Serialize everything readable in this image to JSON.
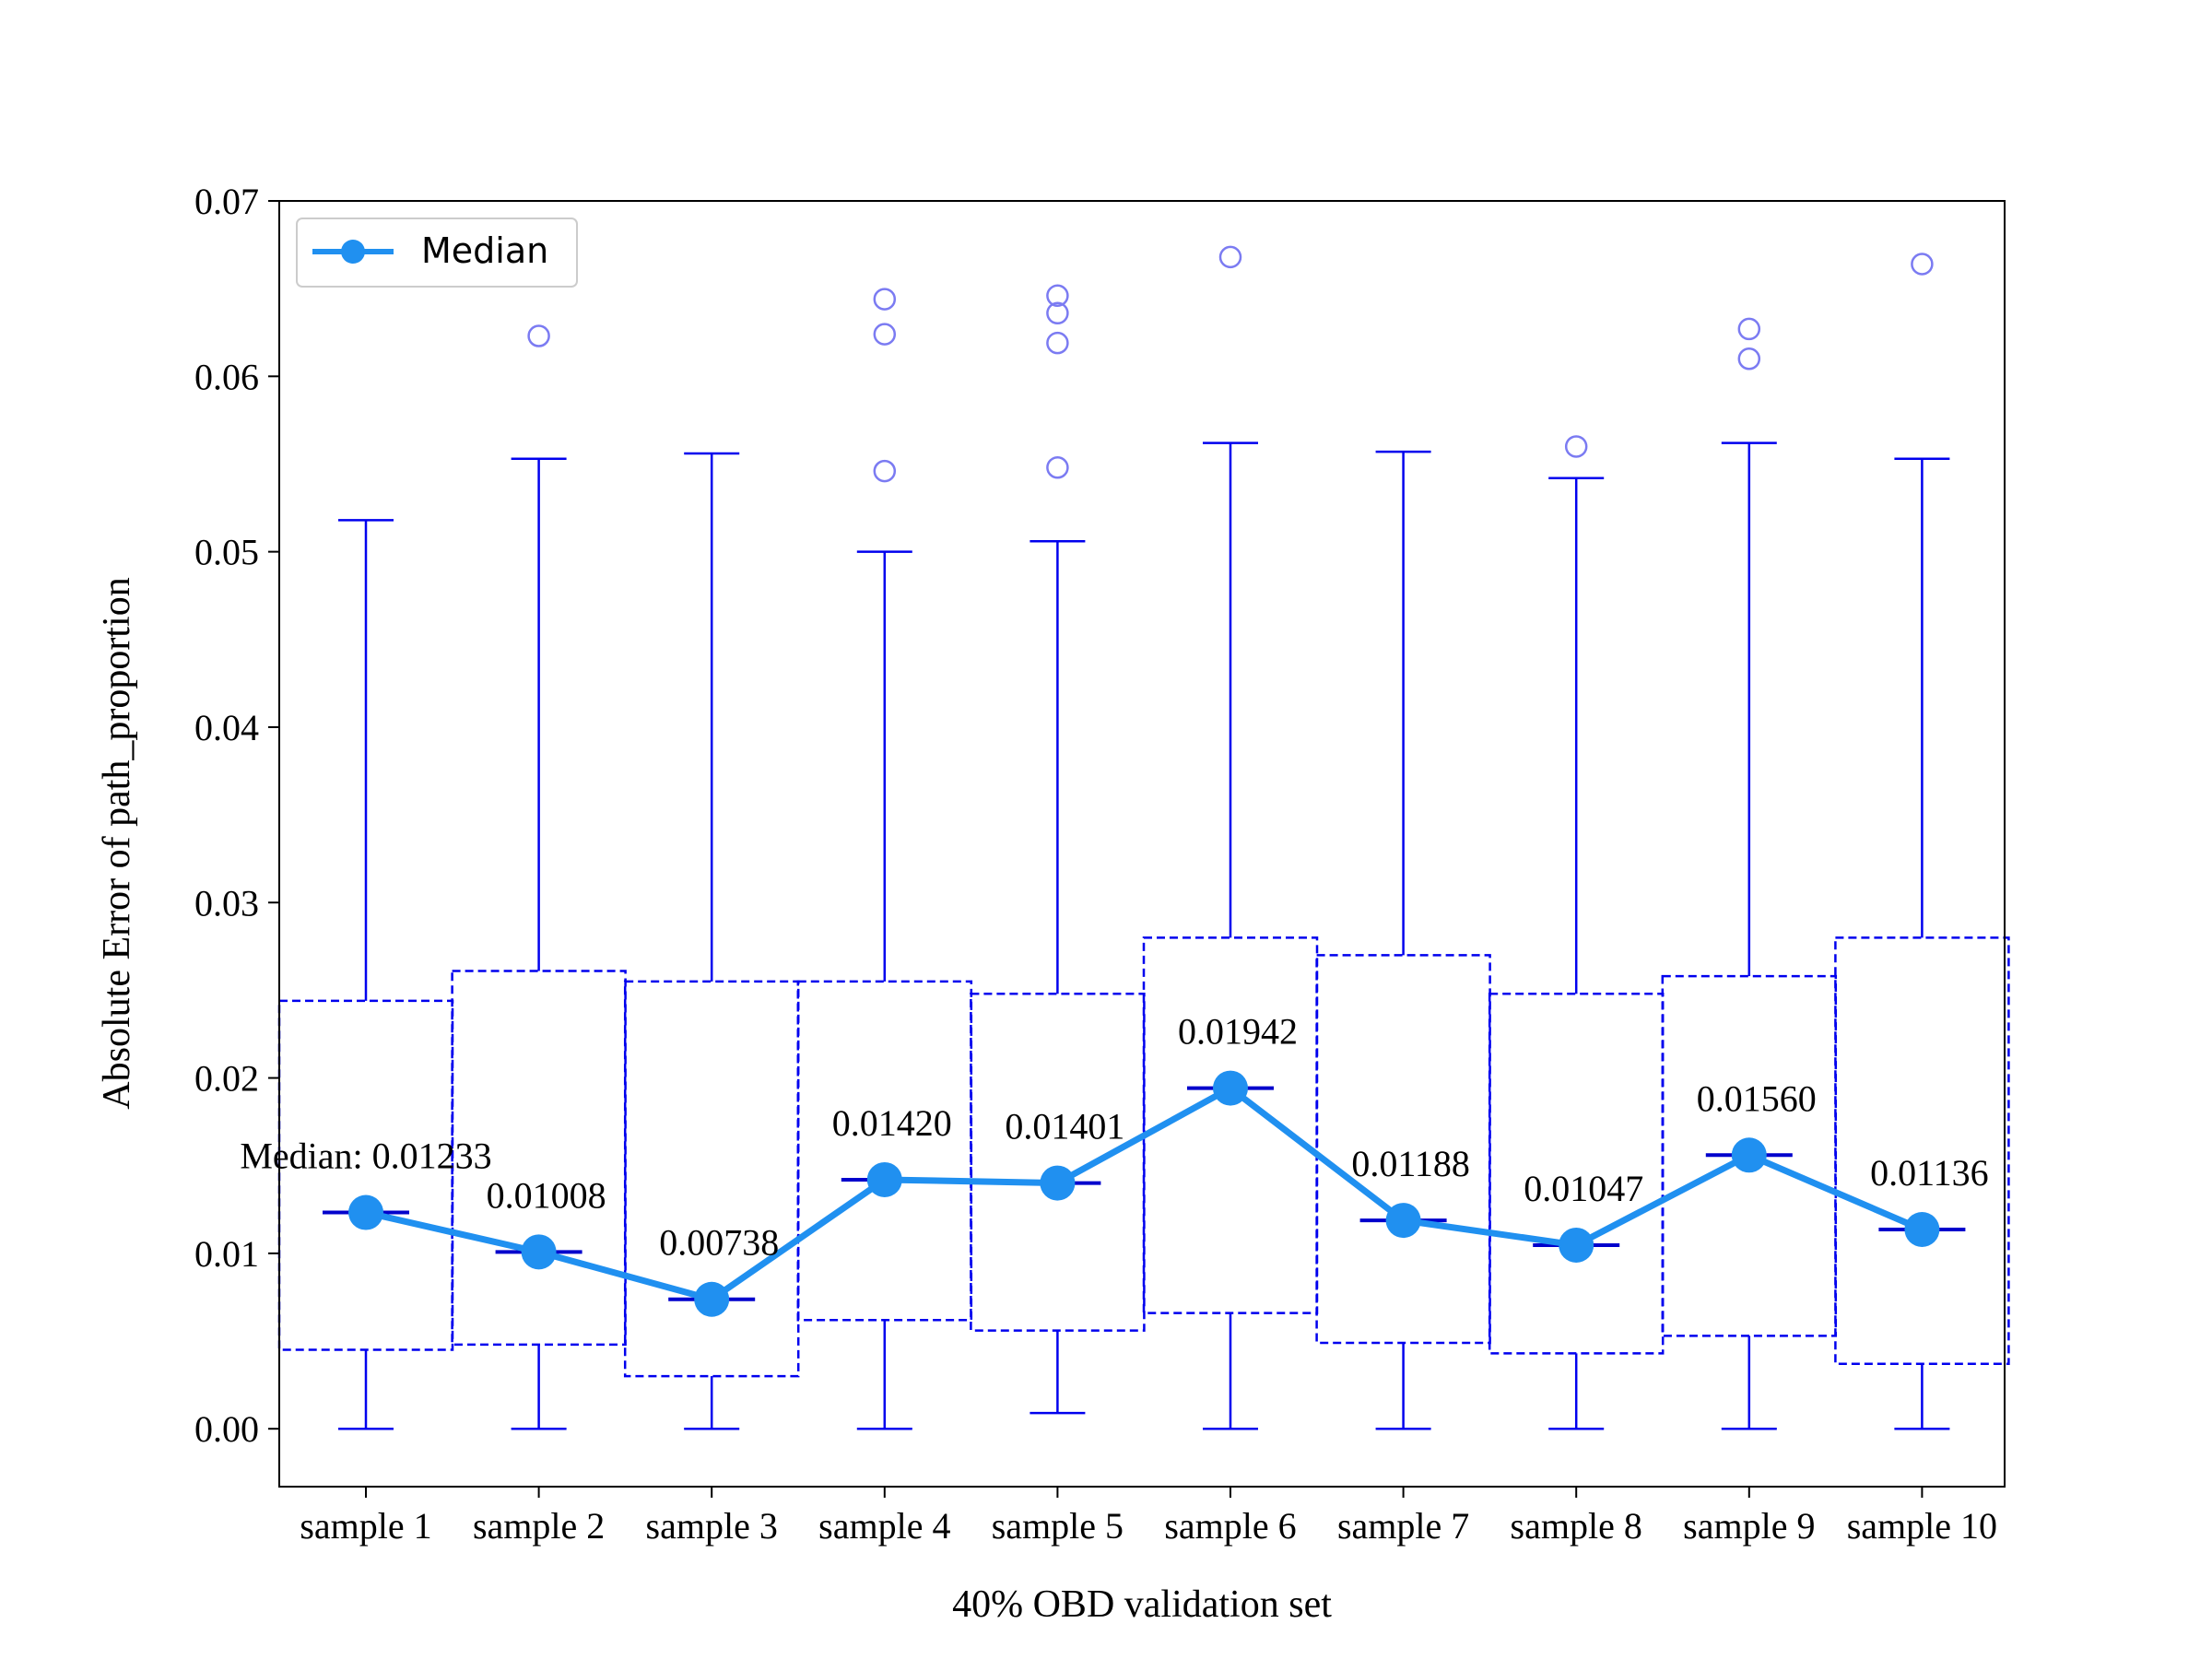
{
  "chart_data": {
    "type": "box",
    "xlabel": "40% OBD validation set",
    "ylabel": "Absolute Error of path_proportion",
    "ylim": [
      -0.0033,
      0.07
    ],
    "yticks": [
      0.0,
      0.01,
      0.02,
      0.03,
      0.04,
      0.05,
      0.06,
      0.07
    ],
    "ytick_labels": [
      "0.00",
      "0.01",
      "0.02",
      "0.03",
      "0.04",
      "0.05",
      "0.06",
      "0.07"
    ],
    "categories": [
      "sample 1",
      "sample 2",
      "sample 3",
      "sample 4",
      "sample 5",
      "sample 6",
      "sample 7",
      "sample 8",
      "sample 9",
      "sample 10"
    ],
    "boxes": [
      {
        "whisker_low": 0.0,
        "q1": 0.0045,
        "median": 0.01233,
        "q3": 0.0244,
        "whisker_high": 0.0518,
        "outliers": []
      },
      {
        "whisker_low": 0.0,
        "q1": 0.0048,
        "median": 0.01008,
        "q3": 0.0261,
        "whisker_high": 0.0553,
        "outliers": [
          0.0623
        ]
      },
      {
        "whisker_low": 0.0,
        "q1": 0.003,
        "median": 0.00738,
        "q3": 0.0255,
        "whisker_high": 0.0556,
        "outliers": []
      },
      {
        "whisker_low": 0.0,
        "q1": 0.0062,
        "median": 0.0142,
        "q3": 0.0255,
        "whisker_high": 0.05,
        "outliers": [
          0.0546,
          0.0624,
          0.0644
        ]
      },
      {
        "whisker_low": 0.0009,
        "q1": 0.0056,
        "median": 0.01401,
        "q3": 0.0248,
        "whisker_high": 0.0506,
        "outliers": [
          0.0548,
          0.0619,
          0.0636,
          0.0646
        ]
      },
      {
        "whisker_low": 0.0,
        "q1": 0.0066,
        "median": 0.01942,
        "q3": 0.028,
        "whisker_high": 0.0562,
        "outliers": [
          0.0668
        ]
      },
      {
        "whisker_low": 0.0,
        "q1": 0.0049,
        "median": 0.01188,
        "q3": 0.027,
        "whisker_high": 0.0557,
        "outliers": []
      },
      {
        "whisker_low": 0.0,
        "q1": 0.0043,
        "median": 0.01047,
        "q3": 0.0248,
        "whisker_high": 0.0542,
        "outliers": [
          0.056
        ]
      },
      {
        "whisker_low": 0.0,
        "q1": 0.0053,
        "median": 0.0156,
        "q3": 0.0258,
        "whisker_high": 0.0562,
        "outliers": [
          0.061,
          0.0627
        ]
      },
      {
        "whisker_low": 0.0,
        "q1": 0.0037,
        "median": 0.01136,
        "q3": 0.028,
        "whisker_high": 0.0553,
        "outliers": [
          0.0664
        ]
      }
    ],
    "median_series": {
      "name": "Median",
      "values": [
        0.01233,
        0.01008,
        0.00738,
        0.0142,
        0.01401,
        0.01942,
        0.01188,
        0.01047,
        0.0156,
        0.01136
      ]
    },
    "median_labels": [
      "Median: 0.01233",
      "0.01008",
      "0.00738",
      "0.01420",
      "0.01401",
      "0.01942",
      "0.01188",
      "0.01047",
      "0.01560",
      "0.01136"
    ],
    "legend": {
      "entries": [
        "Median"
      ],
      "placement": "top-left"
    },
    "grid": false,
    "colors": {
      "box": "#0000ee",
      "outlier": "#7b7bf2",
      "median_line": "#2090f0"
    }
  }
}
